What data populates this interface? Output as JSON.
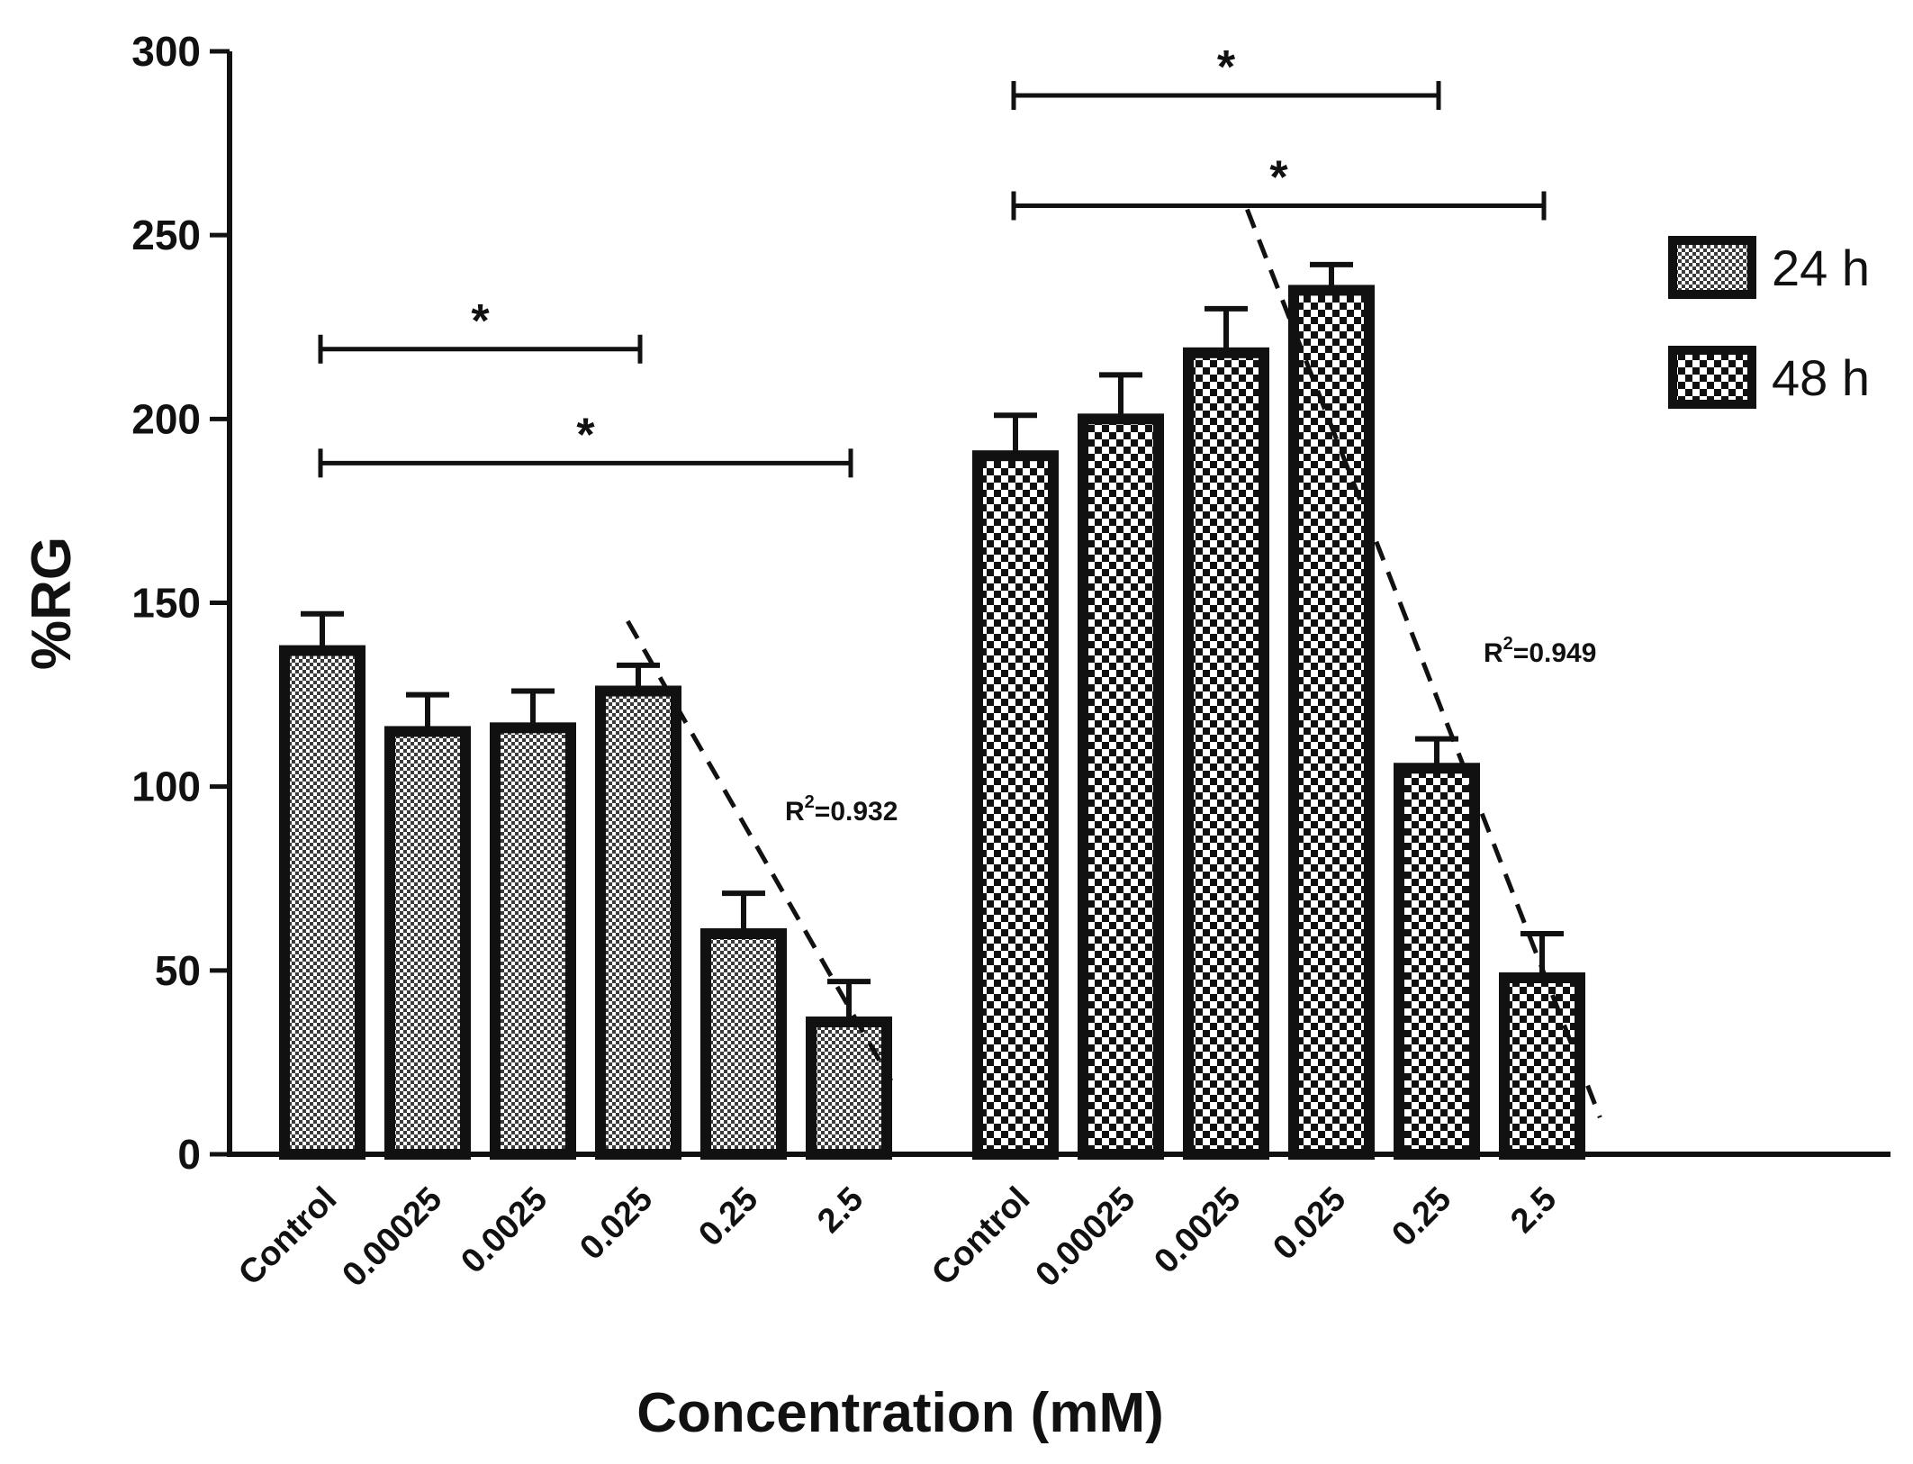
{
  "chart_data": {
    "type": "bar",
    "title": "",
    "xlabel": "Concentration (mM)",
    "ylabel": "%RG",
    "ylim": [
      0,
      300
    ],
    "yticks": [
      0,
      50,
      100,
      150,
      200,
      250,
      300
    ],
    "grid": false,
    "legend_position": "top-right",
    "colors": {
      "ink": "#111111",
      "pattern_fill": "#ffffff"
    },
    "groups": [
      {
        "name": "24 h",
        "categories": [
          "Control",
          "0.00025",
          "0.0025",
          "0.025",
          "0.25",
          "2.5"
        ],
        "values": [
          137,
          115,
          116,
          126,
          60,
          36
        ],
        "errors": [
          10,
          10,
          10,
          7,
          11,
          11
        ],
        "trend": {
          "label": "R",
          "sup": "2",
          "value": "=0.932",
          "from_value": 145,
          "to_value": 20
        },
        "significance": [
          {
            "from": 0,
            "to": 3,
            "label": "*",
            "level": 219
          },
          {
            "from": 0,
            "to": 5,
            "label": "*",
            "level": 188
          }
        ]
      },
      {
        "name": "48 h",
        "categories": [
          "Control",
          "0.00025",
          "0.0025",
          "0.025",
          "0.25",
          "2.5"
        ],
        "values": [
          190,
          200,
          218,
          235,
          105,
          48
        ],
        "errors": [
          11,
          12,
          12,
          7,
          8,
          12
        ],
        "trend": {
          "label": "R",
          "sup": "2",
          "value": "=0.949",
          "from_value": 257,
          "to_value": 10
        },
        "significance": [
          {
            "from": 0,
            "to": 4,
            "label": "*",
            "level": 288
          },
          {
            "from": 0,
            "to": 5,
            "label": "*",
            "level": 258
          }
        ]
      }
    ],
    "legend": [
      {
        "label": "24 h",
        "pattern": "fine-checker"
      },
      {
        "label": "48 h",
        "pattern": "coarse-checker"
      }
    ]
  }
}
